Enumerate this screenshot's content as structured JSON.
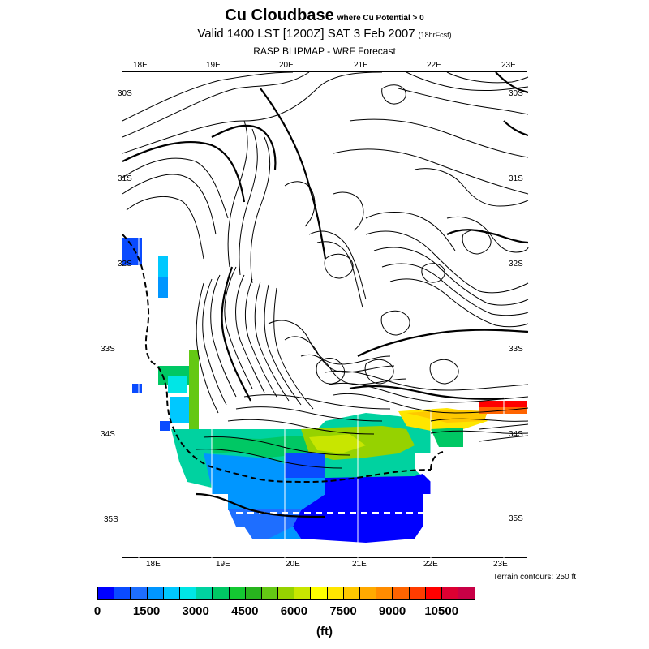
{
  "title": {
    "main": "Cu Cloudbase",
    "note": "where Cu Potential > 0",
    "valid": "Valid 1400 LST [1200Z] SAT 3 Feb 2007",
    "forecast": "(18hrFcst)",
    "model": "RASP BLIPMAP - WRF Forecast"
  },
  "axes": {
    "top_longitudes": [
      "18E",
      "19E",
      "20E",
      "21E",
      "22E",
      "23E"
    ],
    "bottom_longitudes": [
      "18E",
      "19E",
      "20E",
      "21E",
      "22E",
      "23E"
    ],
    "left_latitudes": [
      "30S",
      "31S",
      "32S",
      "33S",
      "34S",
      "35S"
    ],
    "right_latitudes": [
      "30S",
      "31S",
      "32S",
      "33S",
      "34S",
      "35S"
    ]
  },
  "terrain_note": "Terrain contours: 250 ft",
  "colorbar": {
    "colors": [
      "#0000ff",
      "#0a4bff",
      "#1e6eff",
      "#0096ff",
      "#00c8ff",
      "#00e6e6",
      "#00d2a0",
      "#00c864",
      "#14c832",
      "#28b41e",
      "#64c814",
      "#96d200",
      "#c8e600",
      "#ffff00",
      "#ffe600",
      "#ffc800",
      "#ffaa00",
      "#ff8c00",
      "#ff6400",
      "#ff3c00",
      "#ff0000",
      "#dc0032",
      "#c80046"
    ],
    "labels": [
      "0",
      "1500",
      "3000",
      "4500",
      "6000",
      "7500",
      "9000",
      "10500"
    ],
    "units": "(ft)"
  }
}
